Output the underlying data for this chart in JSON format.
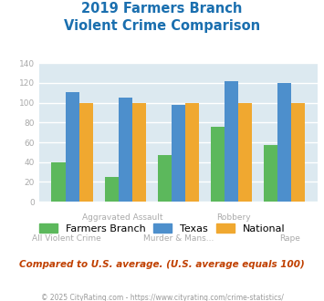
{
  "title_line1": "2019 Farmers Branch",
  "title_line2": "Violent Crime Comparison",
  "title_color": "#1a6faf",
  "categories": [
    "All Violent Crime",
    "Aggravated Assault",
    "Murder & Mans...",
    "Robbery",
    "Rape"
  ],
  "xlabel_top": [
    "",
    "Aggravated Assault",
    "",
    "Robbery",
    ""
  ],
  "xlabel_bot": [
    "All Violent Crime",
    "",
    "Murder & Mans...",
    "",
    "Rape"
  ],
  "farmers_branch": [
    40,
    25,
    47,
    76,
    57
  ],
  "texas": [
    111,
    105,
    98,
    122,
    120
  ],
  "national": [
    100,
    100,
    100,
    100,
    100
  ],
  "bar_color_fb": "#5cb85c",
  "bar_color_tx": "#4d8fcc",
  "bar_color_na": "#f0a830",
  "ylim": [
    0,
    140
  ],
  "yticks": [
    0,
    20,
    40,
    60,
    80,
    100,
    120,
    140
  ],
  "legend_labels": [
    "Farmers Branch",
    "Texas",
    "National"
  ],
  "note": "Compared to U.S. average. (U.S. average equals 100)",
  "note_color": "#c04000",
  "copyright": "© 2025 CityRating.com - https://www.cityrating.com/crime-statistics/",
  "copyright_color": "#999999",
  "background_color": "#dce9f0",
  "figure_background": "#ffffff",
  "grid_color": "#ffffff",
  "tick_label_color": "#aaaaaa"
}
